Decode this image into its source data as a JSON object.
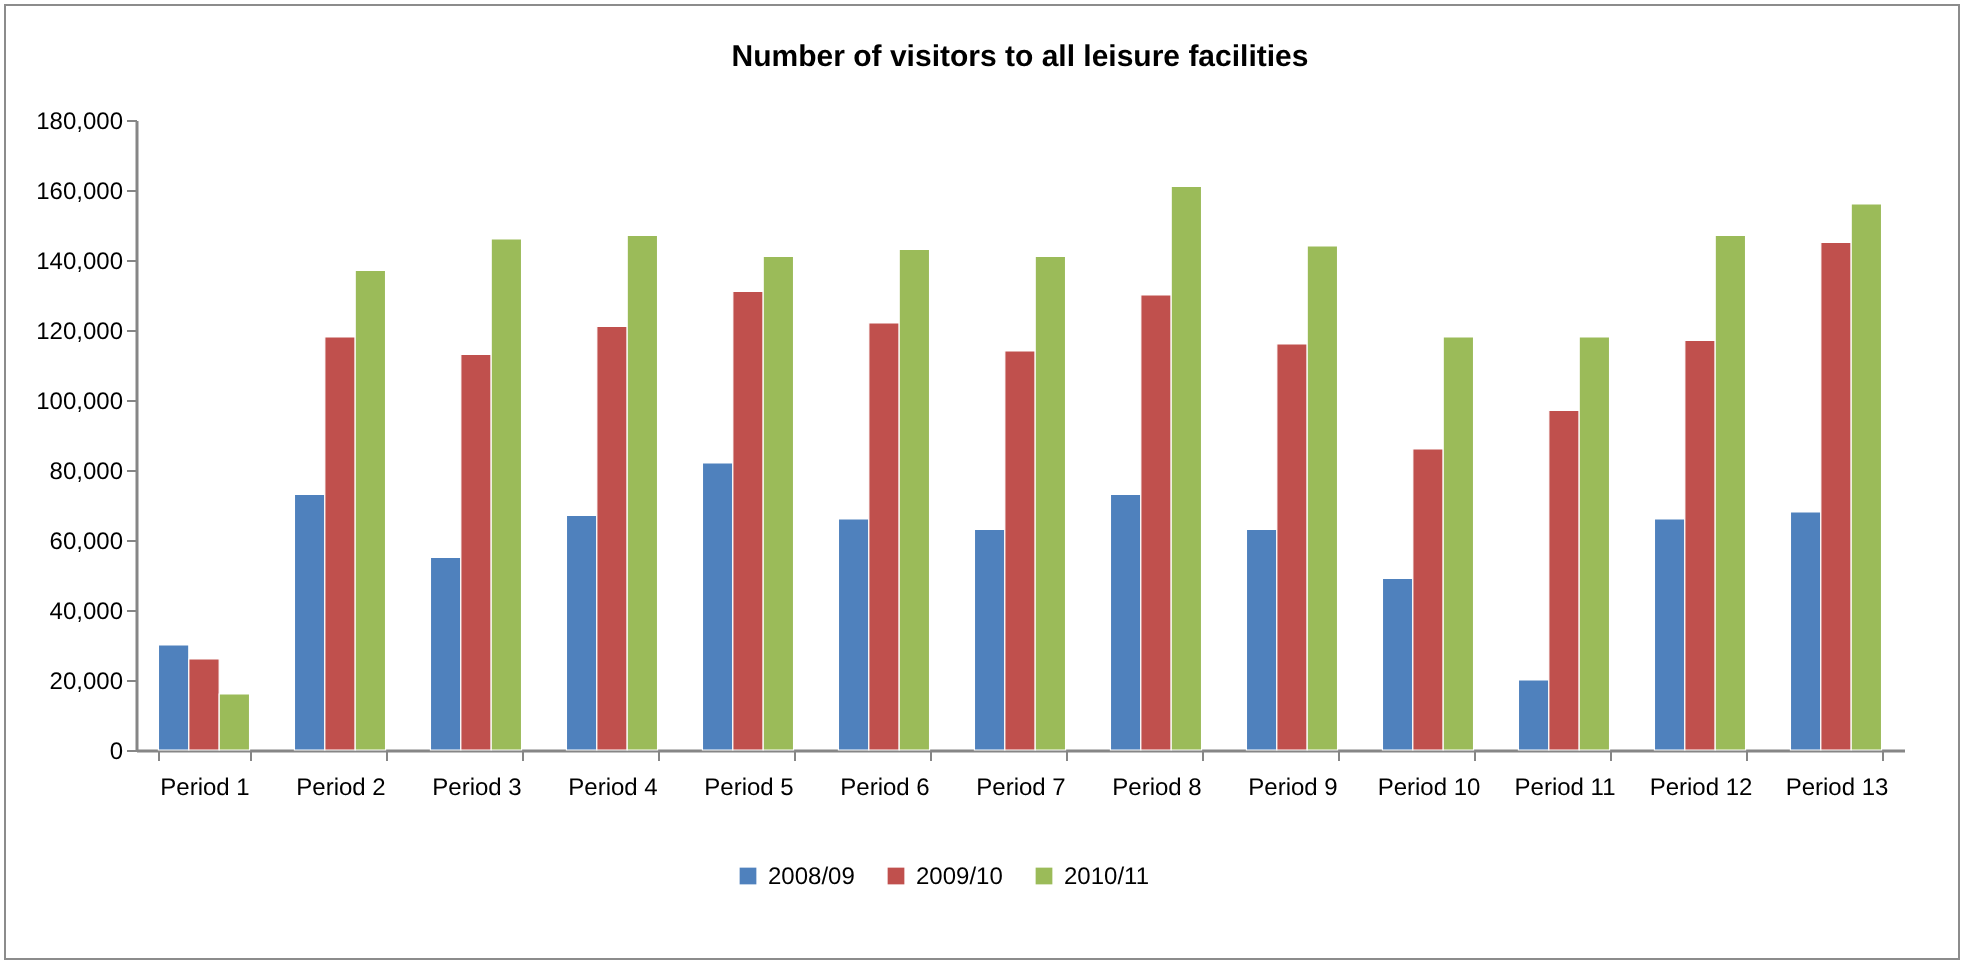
{
  "chart_data": {
    "type": "bar",
    "title": "Number of visitors to all leisure facilities",
    "categories": [
      "Period 1",
      "Period 2",
      "Period 3",
      "Period 4",
      "Period 5",
      "Period 6",
      "Period 7",
      "Period 8",
      "Period 9",
      "Period 10",
      "Period 11",
      "Period 12",
      "Period 13"
    ],
    "series": [
      {
        "name": "2008/09",
        "color": "#4f81bd",
        "values": [
          30000,
          73000,
          55000,
          67000,
          82000,
          66000,
          63000,
          73000,
          63000,
          49000,
          20000,
          66000,
          68000
        ]
      },
      {
        "name": "2009/10",
        "color": "#c0504d",
        "values": [
          26000,
          118000,
          113000,
          121000,
          131000,
          122000,
          114000,
          130000,
          116000,
          86000,
          97000,
          117000,
          145000
        ]
      },
      {
        "name": "2010/11",
        "color": "#9bbb59",
        "values": [
          16000,
          137000,
          146000,
          147000,
          141000,
          143000,
          141000,
          161000,
          144000,
          118000,
          118000,
          147000,
          156000
        ]
      }
    ],
    "ylim": [
      0,
      180000
    ],
    "yticks": [
      0,
      {
        "value": 20000,
        "label": "20,000"
      },
      {
        "value": 40000,
        "label": "40,000"
      },
      {
        "value": 60000,
        "label": "60,000"
      },
      {
        "value": 80000,
        "label": "80,000"
      },
      {
        "value": 100000,
        "label": "100,000"
      },
      {
        "value": 120000,
        "label": "120,000"
      },
      {
        "value": 140000,
        "label": "140,000"
      },
      {
        "value": 160000,
        "label": "160,000"
      },
      {
        "value": 180000,
        "label": "180,000"
      }
    ],
    "grid": false,
    "legend": "bottom"
  }
}
